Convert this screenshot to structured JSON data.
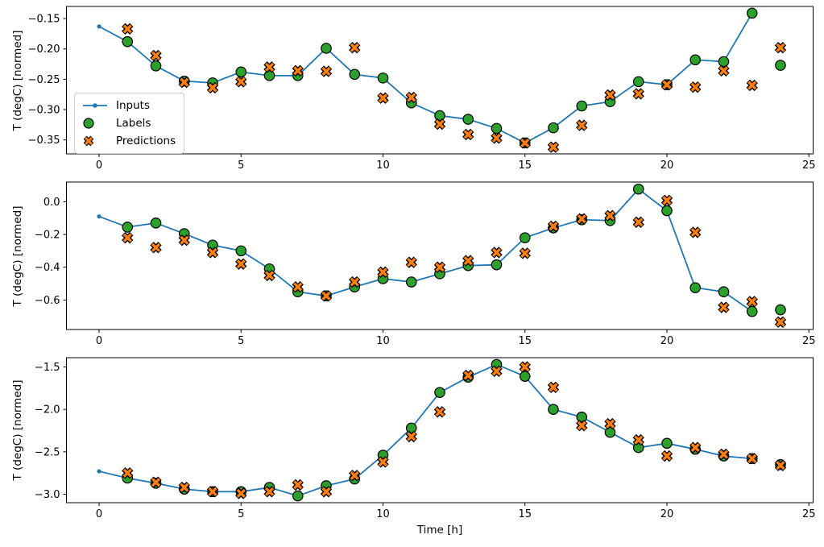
{
  "figure": {
    "background": "#ffffff",
    "text_color": "#000000",
    "spine_color": "#000000"
  },
  "legend": {
    "position": "center-left-of-top-plot",
    "entries": [
      "Inputs",
      "Labels",
      "Predictions"
    ]
  },
  "chart_data": [
    {
      "type": "line",
      "title": "",
      "xlabel": "",
      "ylabel": "T (degC) [normed]",
      "grid": false,
      "xlim": [
        -1.15,
        25.15
      ],
      "ylim": [
        -0.373,
        -0.13
      ],
      "xticks": [
        0,
        5,
        10,
        15,
        20,
        25
      ],
      "xticklabels": [
        "0",
        "5",
        "10",
        "15",
        "20",
        "25"
      ],
      "yticks": [
        -0.15,
        -0.2,
        -0.25,
        -0.3,
        -0.35
      ],
      "yticklabels": [
        "−0.15",
        "−0.20",
        "−0.25",
        "−0.30",
        "−0.35"
      ],
      "series": [
        {
          "name": "Inputs",
          "marker": "line-dot",
          "color": "#1f77b4",
          "edgecolor": "#1f77b4",
          "x": [
            0,
            1,
            2,
            3,
            4,
            5,
            6,
            7,
            8,
            9,
            10,
            11,
            12,
            13,
            14,
            15,
            16,
            17,
            18,
            19,
            20,
            21,
            22,
            23
          ],
          "y": [
            -0.163,
            -0.188,
            -0.228,
            -0.253,
            -0.256,
            -0.238,
            -0.244,
            -0.244,
            -0.199,
            -0.242,
            -0.248,
            -0.289,
            -0.31,
            -0.316,
            -0.331,
            -0.355,
            -0.33,
            -0.294,
            -0.287,
            -0.254,
            -0.259,
            -0.218,
            -0.221,
            -0.141
          ]
        },
        {
          "name": "Labels",
          "marker": "circle",
          "color": "#2ca02c",
          "edgecolor": "#000000",
          "x": [
            1,
            2,
            3,
            4,
            5,
            6,
            7,
            8,
            9,
            10,
            11,
            12,
            13,
            14,
            15,
            16,
            17,
            18,
            19,
            20,
            21,
            22,
            23,
            24
          ],
          "y": [
            -0.188,
            -0.228,
            -0.253,
            -0.256,
            -0.238,
            -0.244,
            -0.244,
            -0.199,
            -0.242,
            -0.248,
            -0.289,
            -0.31,
            -0.316,
            -0.331,
            -0.355,
            -0.33,
            -0.294,
            -0.287,
            -0.254,
            -0.259,
            -0.218,
            -0.221,
            -0.141,
            -0.227
          ]
        },
        {
          "name": "Predictions",
          "marker": "X",
          "color": "#ff7f0e",
          "edgecolor": "#000000",
          "x": [
            1,
            2,
            3,
            4,
            5,
            6,
            7,
            8,
            9,
            10,
            11,
            12,
            13,
            14,
            15,
            16,
            17,
            18,
            19,
            20,
            21,
            22,
            23,
            24
          ],
          "y": [
            -0.167,
            -0.211,
            -0.255,
            -0.264,
            -0.254,
            -0.23,
            -0.236,
            -0.237,
            -0.198,
            -0.281,
            -0.28,
            -0.324,
            -0.341,
            -0.347,
            -0.355,
            -0.362,
            -0.326,
            -0.276,
            -0.274,
            -0.259,
            -0.263,
            -0.236,
            -0.26,
            -0.198
          ]
        }
      ]
    },
    {
      "type": "line",
      "title": "",
      "xlabel": "",
      "ylabel": "T (degC) [normed]",
      "grid": false,
      "xlim": [
        -1.15,
        25.15
      ],
      "ylim": [
        -0.78,
        0.12
      ],
      "xticks": [
        0,
        5,
        10,
        15,
        20,
        25
      ],
      "xticklabels": [
        "0",
        "5",
        "10",
        "15",
        "20",
        "25"
      ],
      "yticks": [
        0.0,
        -0.2,
        -0.4,
        -0.6
      ],
      "yticklabels": [
        "0.0",
        "−0.2",
        "−0.4",
        "−0.6"
      ],
      "series": [
        {
          "name": "Inputs",
          "marker": "line-dot",
          "color": "#1f77b4",
          "edgecolor": "#1f77b4",
          "x": [
            0,
            1,
            2,
            3,
            4,
            5,
            6,
            7,
            8,
            9,
            10,
            11,
            12,
            13,
            14,
            15,
            16,
            17,
            18,
            19,
            20,
            21,
            22,
            23
          ],
          "y": [
            -0.09,
            -0.155,
            -0.13,
            -0.195,
            -0.265,
            -0.3,
            -0.41,
            -0.55,
            -0.575,
            -0.52,
            -0.47,
            -0.49,
            -0.44,
            -0.39,
            -0.385,
            -0.22,
            -0.16,
            -0.11,
            -0.115,
            0.077,
            -0.055,
            -0.525,
            -0.55,
            -0.67
          ]
        },
        {
          "name": "Labels",
          "marker": "circle",
          "color": "#2ca02c",
          "edgecolor": "#000000",
          "x": [
            1,
            2,
            3,
            4,
            5,
            6,
            7,
            8,
            9,
            10,
            11,
            12,
            13,
            14,
            15,
            16,
            17,
            18,
            19,
            20,
            21,
            22,
            23,
            24
          ],
          "y": [
            -0.155,
            -0.13,
            -0.195,
            -0.265,
            -0.3,
            -0.41,
            -0.55,
            -0.575,
            -0.52,
            -0.47,
            -0.49,
            -0.44,
            -0.39,
            -0.385,
            -0.22,
            -0.16,
            -0.11,
            -0.115,
            0.077,
            -0.055,
            -0.525,
            -0.55,
            -0.67,
            -0.66
          ]
        },
        {
          "name": "Predictions",
          "marker": "X",
          "color": "#ff7f0e",
          "edgecolor": "#000000",
          "x": [
            1,
            2,
            3,
            4,
            5,
            6,
            7,
            8,
            9,
            10,
            11,
            12,
            13,
            14,
            15,
            16,
            17,
            18,
            19,
            20,
            21,
            22,
            23,
            24
          ],
          "y": [
            -0.22,
            -0.28,
            -0.235,
            -0.31,
            -0.38,
            -0.45,
            -0.52,
            -0.575,
            -0.49,
            -0.43,
            -0.37,
            -0.4,
            -0.36,
            -0.31,
            -0.315,
            -0.15,
            -0.105,
            -0.085,
            -0.125,
            0.008,
            -0.187,
            -0.645,
            -0.61,
            -0.735
          ]
        }
      ]
    },
    {
      "type": "line",
      "title": "",
      "xlabel": "Time [h]",
      "ylabel": "T (degC) [normed]",
      "grid": false,
      "xlim": [
        -1.15,
        25.15
      ],
      "ylim": [
        -3.1,
        -1.39
      ],
      "xticks": [
        0,
        5,
        10,
        15,
        20,
        25
      ],
      "xticklabels": [
        "0",
        "5",
        "10",
        "15",
        "20",
        "25"
      ],
      "yticks": [
        -1.5,
        -2.0,
        -2.5,
        -3.0
      ],
      "yticklabels": [
        "−1.5",
        "−2.0",
        "−2.5",
        "−3.0"
      ],
      "series": [
        {
          "name": "Inputs",
          "marker": "line-dot",
          "color": "#1f77b4",
          "edgecolor": "#1f77b4",
          "x": [
            0,
            1,
            2,
            3,
            4,
            5,
            6,
            7,
            8,
            9,
            10,
            11,
            12,
            13,
            14,
            15,
            16,
            17,
            18,
            19,
            20,
            21,
            22,
            23
          ],
          "y": [
            -2.73,
            -2.81,
            -2.87,
            -2.94,
            -2.97,
            -2.97,
            -2.92,
            -3.02,
            -2.9,
            -2.82,
            -2.54,
            -2.22,
            -1.8,
            -1.62,
            -1.47,
            -1.61,
            -2.0,
            -2.09,
            -2.27,
            -2.45,
            -2.4,
            -2.47,
            -2.55,
            -2.58
          ]
        },
        {
          "name": "Labels",
          "marker": "circle",
          "color": "#2ca02c",
          "edgecolor": "#000000",
          "x": [
            1,
            2,
            3,
            4,
            5,
            6,
            7,
            8,
            9,
            10,
            11,
            12,
            13,
            14,
            15,
            16,
            17,
            18,
            19,
            20,
            21,
            22,
            23,
            24
          ],
          "y": [
            -2.81,
            -2.87,
            -2.94,
            -2.97,
            -2.97,
            -2.92,
            -3.02,
            -2.9,
            -2.82,
            -2.54,
            -2.22,
            -1.8,
            -1.62,
            -1.47,
            -1.61,
            -2.0,
            -2.09,
            -2.27,
            -2.45,
            -2.4,
            -2.47,
            -2.55,
            -2.58,
            -2.65
          ]
        },
        {
          "name": "Predictions",
          "marker": "X",
          "color": "#ff7f0e",
          "edgecolor": "#000000",
          "x": [
            1,
            2,
            3,
            4,
            5,
            6,
            7,
            8,
            9,
            10,
            11,
            12,
            13,
            14,
            15,
            16,
            17,
            18,
            19,
            20,
            21,
            22,
            23,
            24
          ],
          "y": [
            -2.75,
            -2.86,
            -2.92,
            -2.97,
            -2.99,
            -2.97,
            -2.89,
            -2.97,
            -2.78,
            -2.62,
            -2.32,
            -2.03,
            -1.6,
            -1.55,
            -1.5,
            -1.74,
            -2.19,
            -2.17,
            -2.36,
            -2.55,
            -2.45,
            -2.53,
            -2.58,
            -2.66
          ]
        }
      ]
    }
  ]
}
